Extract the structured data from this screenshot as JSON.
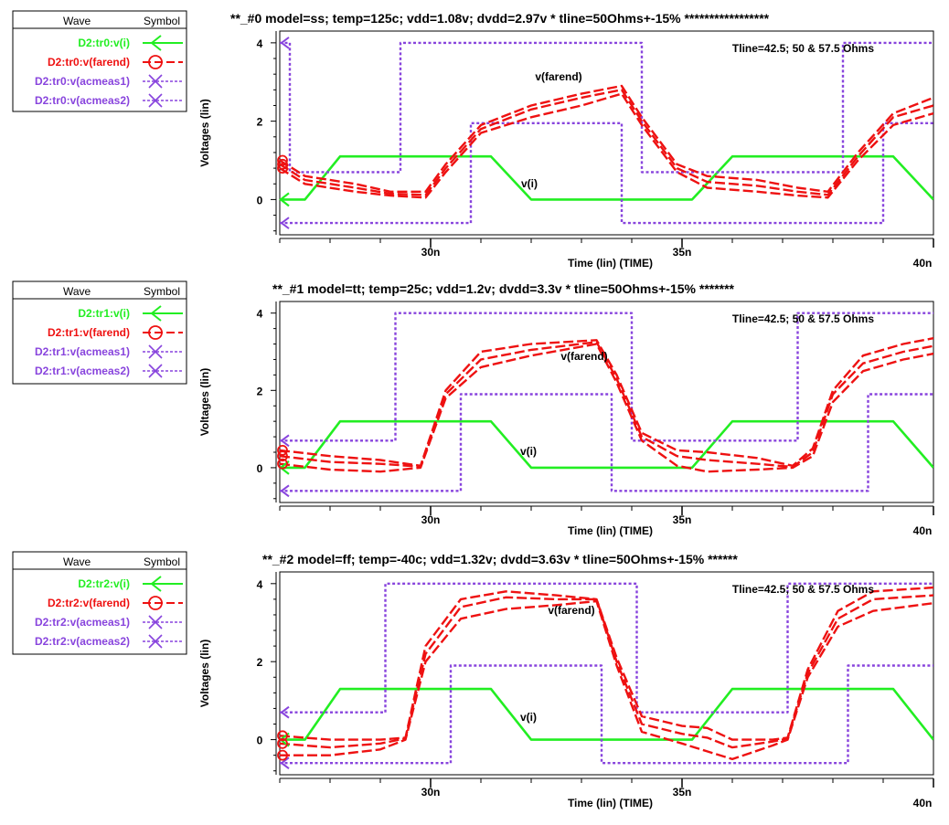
{
  "colors": {
    "vi": "#22ee22",
    "farend": "#ee1111",
    "acmeas": "#8844dd",
    "axis": "#000000"
  },
  "legend_headers": {
    "wave": "Wave",
    "symbol": "Symbol"
  },
  "chart_data": [
    {
      "type": "line",
      "title": "**_#0  model=ss; temp=125c; vdd=1.08v; dvdd=2.97v * tline=50Ohms+-15% *****************",
      "xlabel": "Time (lin) (TIME)",
      "ylabel": "Voltages (lin)",
      "xlim": [
        27,
        40
      ],
      "ylim": [
        -0.9,
        4.3
      ],
      "xticks": [
        {
          "v": 30,
          "label": "30n"
        },
        {
          "v": 35,
          "label": "35n"
        },
        {
          "v": 40,
          "label": "40n"
        }
      ],
      "yticks": [
        {
          "v": 0,
          "label": "0"
        },
        {
          "v": 2,
          "label": "2"
        },
        {
          "v": 4,
          "label": "4"
        }
      ],
      "annotation": "Tline=42.5; 50 & 57.5 Ohms",
      "label_farend": "v(farend)",
      "label_vi": "v(i)",
      "legend": [
        {
          "name": "D2:tr0:v(i)",
          "color": "vi",
          "marker": "arrow",
          "style": "solid"
        },
        {
          "name": "D2:tr0:v(farend)",
          "color": "farend",
          "marker": "circle",
          "style": "dashed"
        },
        {
          "name": "D2:tr0:v(acmeas1)",
          "color": "acmeas",
          "marker": "x",
          "style": "dotted"
        },
        {
          "name": "D2:tr0:v(acmeas2)",
          "color": "acmeas",
          "marker": "x",
          "style": "dotted"
        }
      ],
      "series": [
        {
          "name": "D2:tr0:v(i)",
          "x": [
            27,
            27.5,
            28.2,
            31.2,
            32,
            35.2,
            36,
            39.2,
            40
          ],
          "y": [
            0,
            0,
            1.1,
            1.1,
            0,
            0,
            1.1,
            1.1,
            0
          ]
        },
        {
          "name": "D2:tr0:v(acmeas1)",
          "x": [
            27,
            27.2,
            27.2,
            29.4,
            29.4,
            34.2,
            34.2,
            38.2,
            38.2,
            40
          ],
          "y": [
            4,
            4,
            0.7,
            0.7,
            4,
            4,
            0.7,
            0.7,
            4,
            4
          ]
        },
        {
          "name": "D2:tr0:v(acmeas2)",
          "x": [
            27,
            30.8,
            30.8,
            33.8,
            33.8,
            39.0,
            39.0,
            40
          ],
          "y": [
            -0.6,
            -0.6,
            1.95,
            1.95,
            -0.6,
            -0.6,
            1.95,
            1.95
          ]
        },
        {
          "name": "D2:tr0:v(farend) #1",
          "x": [
            27,
            27.5,
            28.5,
            29.2,
            29.9,
            30.3,
            31,
            32,
            33,
            33.8,
            34.2,
            34.9,
            35.5,
            36.5,
            37.3,
            37.9,
            38.5,
            39.2,
            40
          ],
          "y": [
            1.0,
            0.6,
            0.4,
            0.2,
            0.2,
            0.9,
            1.9,
            2.4,
            2.7,
            2.9,
            2.1,
            0.9,
            0.6,
            0.5,
            0.3,
            0.2,
            1.2,
            2.2,
            2.6
          ]
        },
        {
          "name": "D2:tr0:v(farend) #2",
          "x": [
            27,
            27.5,
            28.5,
            29.2,
            29.9,
            30.3,
            31,
            32,
            33,
            33.8,
            34.2,
            34.9,
            35.5,
            36.5,
            37.3,
            37.9,
            38.5,
            39.2,
            40
          ],
          "y": [
            0.9,
            0.5,
            0.3,
            0.15,
            0.12,
            0.8,
            1.8,
            2.3,
            2.6,
            2.8,
            2.0,
            0.8,
            0.45,
            0.35,
            0.2,
            0.12,
            1.1,
            2.1,
            2.4
          ]
        },
        {
          "name": "D2:tr0:v(farend) #3",
          "x": [
            27,
            27.5,
            28.5,
            29.2,
            29.9,
            30.3,
            31,
            32,
            33,
            33.8,
            34.2,
            34.9,
            35.5,
            36.5,
            37.3,
            37.9,
            38.5,
            39.2,
            40
          ],
          "y": [
            0.8,
            0.4,
            0.2,
            0.1,
            0.05,
            0.7,
            1.7,
            2.1,
            2.4,
            2.7,
            1.9,
            0.7,
            0.3,
            0.2,
            0.1,
            0.05,
            1.0,
            1.9,
            2.2
          ]
        }
      ]
    },
    {
      "type": "line",
      "title": "**_#1   model=tt; temp=25c; vdd=1.2v; dvdd=3.3v * tline=50Ohms+-15% *******",
      "xlabel": "Time (lin) (TIME)",
      "ylabel": "Voltages (lin)",
      "xlim": [
        27,
        40
      ],
      "ylim": [
        -0.9,
        4.3
      ],
      "xticks": [
        {
          "v": 30,
          "label": "30n"
        },
        {
          "v": 35,
          "label": "35n"
        },
        {
          "v": 40,
          "label": "40n"
        }
      ],
      "yticks": [
        {
          "v": 0,
          "label": "0"
        },
        {
          "v": 2,
          "label": "2"
        },
        {
          "v": 4,
          "label": "4"
        }
      ],
      "annotation": "Tline=42.5; 50 & 57.5 Ohms",
      "label_farend": "v(farend)",
      "label_vi": "v(i)",
      "legend": [
        {
          "name": "D2:tr1:v(i)",
          "color": "vi",
          "marker": "arrow",
          "style": "solid"
        },
        {
          "name": "D2:tr1:v(farend)",
          "color": "farend",
          "marker": "circle",
          "style": "dashed"
        },
        {
          "name": "D2:tr1:v(acmeas1)",
          "color": "acmeas",
          "marker": "x",
          "style": "dotted"
        },
        {
          "name": "D2:tr1:v(acmeas2)",
          "color": "acmeas",
          "marker": "x",
          "style": "dotted"
        }
      ],
      "series": [
        {
          "name": "D2:tr1:v(i)",
          "x": [
            27,
            27.5,
            28.2,
            31.2,
            32,
            35.2,
            36,
            39.2,
            40
          ],
          "y": [
            0,
            0,
            1.2,
            1.2,
            0,
            0,
            1.2,
            1.2,
            0
          ]
        },
        {
          "name": "D2:tr1:v(acmeas1)",
          "x": [
            27,
            29.3,
            29.3,
            34.0,
            34.0,
            37.3,
            37.3,
            40
          ],
          "y": [
            0.7,
            0.7,
            4,
            4,
            0.7,
            0.7,
            4,
            4
          ]
        },
        {
          "name": "D2:tr1:v(acmeas2)",
          "x": [
            27,
            30.6,
            30.6,
            33.6,
            33.6,
            38.7,
            38.7,
            40
          ],
          "y": [
            -0.6,
            -0.6,
            1.9,
            1.9,
            -0.6,
            -0.6,
            1.9,
            1.9
          ]
        },
        {
          "name": "D2:tr1:v(farend) #1",
          "x": [
            27,
            28,
            29,
            29.8,
            30.3,
            31,
            32,
            33.3,
            33.7,
            34.2,
            34.9,
            35.5,
            36.5,
            37.2,
            37.6,
            38.0,
            38.6,
            39.4,
            40
          ],
          "y": [
            0.45,
            0.3,
            0.2,
            0.05,
            2.0,
            3.0,
            3.2,
            3.3,
            2.4,
            0.9,
            0.45,
            0.4,
            0.25,
            0.05,
            0.5,
            2.0,
            2.9,
            3.2,
            3.35
          ]
        },
        {
          "name": "D2:tr1:v(farend) #2",
          "x": [
            27,
            28,
            29,
            29.8,
            30.3,
            31,
            32,
            33.3,
            33.7,
            34.2,
            34.9,
            35.5,
            36.5,
            37.2,
            37.6,
            38.0,
            38.6,
            39.4,
            40
          ],
          "y": [
            0.3,
            0.15,
            0.1,
            0.03,
            1.9,
            2.8,
            3.05,
            3.25,
            2.3,
            0.8,
            0.3,
            0.2,
            0.1,
            0.02,
            0.4,
            1.9,
            2.7,
            3.0,
            3.15
          ]
        },
        {
          "name": "D2:tr1:v(farend) #3",
          "x": [
            27,
            28,
            29,
            29.8,
            30.3,
            31,
            32,
            33.3,
            33.7,
            34.2,
            34.9,
            35.5,
            36.5,
            37.2,
            37.6,
            38.0,
            38.6,
            39.4,
            40
          ],
          "y": [
            0.1,
            -0.05,
            -0.1,
            0,
            1.8,
            2.6,
            2.9,
            3.2,
            2.2,
            0.7,
            0.05,
            -0.1,
            -0.05,
            0,
            0.3,
            1.7,
            2.5,
            2.8,
            2.95
          ]
        }
      ]
    },
    {
      "type": "line",
      "title": "**_#2   model=ff; temp=-40c; vdd=1.32v; dvdd=3.63v * tline=50Ohms+-15% ******",
      "xlabel": "Time (lin) (TIME)",
      "ylabel": "Voltages (lin)",
      "xlim": [
        27,
        40
      ],
      "ylim": [
        -0.9,
        4.3
      ],
      "xticks": [
        {
          "v": 30,
          "label": "30n"
        },
        {
          "v": 35,
          "label": "35n"
        },
        {
          "v": 40,
          "label": "40n"
        }
      ],
      "yticks": [
        {
          "v": 0,
          "label": "0"
        },
        {
          "v": 2,
          "label": "2"
        },
        {
          "v": 4,
          "label": "4"
        }
      ],
      "annotation": "Tline=42.5; 50 & 57.5 Ohms",
      "label_farend": "v(farend)",
      "label_vi": "v(i)",
      "legend": [
        {
          "name": "D2:tr2:v(i)",
          "color": "vi",
          "marker": "arrow",
          "style": "solid"
        },
        {
          "name": "D2:tr2:v(farend)",
          "color": "farend",
          "marker": "circle",
          "style": "dashed"
        },
        {
          "name": "D2:tr2:v(acmeas1)",
          "color": "acmeas",
          "marker": "x",
          "style": "dotted"
        },
        {
          "name": "D2:tr2:v(acmeas2)",
          "color": "acmeas",
          "marker": "x",
          "style": "dotted"
        }
      ],
      "series": [
        {
          "name": "D2:tr2:v(i)",
          "x": [
            27,
            27.5,
            28.2,
            31.2,
            32,
            35.2,
            36,
            39.2,
            40
          ],
          "y": [
            0,
            0,
            1.3,
            1.3,
            0,
            0,
            1.3,
            1.3,
            0
          ]
        },
        {
          "name": "D2:tr2:v(acmeas1)",
          "x": [
            27,
            29.1,
            29.1,
            34.1,
            34.1,
            37.1,
            37.1,
            40
          ],
          "y": [
            0.7,
            0.7,
            4,
            4,
            0.7,
            0.7,
            4,
            4
          ]
        },
        {
          "name": "D2:tr2:v(acmeas2)",
          "x": [
            27,
            30.4,
            30.4,
            33.4,
            33.4,
            38.3,
            38.3,
            40
          ],
          "y": [
            -0.6,
            -0.6,
            1.9,
            1.9,
            -0.6,
            -0.6,
            1.9,
            1.9
          ]
        },
        {
          "name": "D2:tr2:v(farend) #1",
          "x": [
            27,
            28,
            29,
            29.5,
            29.9,
            30.6,
            31.5,
            32.5,
            33.3,
            33.7,
            34.2,
            35,
            35.5,
            36,
            36.8,
            37.1,
            37.5,
            38.1,
            38.8,
            40
          ],
          "y": [
            0.1,
            0.0,
            0.0,
            0.05,
            2.4,
            3.6,
            3.8,
            3.7,
            3.6,
            2.1,
            0.6,
            0.35,
            0.3,
            0.0,
            0.0,
            0.05,
            1.8,
            3.3,
            3.8,
            3.9
          ]
        },
        {
          "name": "D2:tr2:v(farend) #2",
          "x": [
            27,
            28,
            29,
            29.5,
            29.9,
            30.6,
            31.5,
            32.5,
            33.3,
            33.7,
            34.2,
            35,
            35.5,
            36,
            36.8,
            37.1,
            37.5,
            38.1,
            38.8,
            40
          ],
          "y": [
            -0.1,
            -0.2,
            -0.1,
            0.03,
            2.2,
            3.4,
            3.65,
            3.6,
            3.6,
            2.0,
            0.4,
            0.15,
            0.05,
            -0.2,
            -0.05,
            0.03,
            1.7,
            3.1,
            3.6,
            3.7
          ]
        },
        {
          "name": "D2:tr2:v(farend) #3",
          "x": [
            27,
            28,
            29,
            29.5,
            29.9,
            30.6,
            31.5,
            32.5,
            33.3,
            33.7,
            34.2,
            35,
            35.5,
            36,
            36.8,
            37.1,
            37.5,
            38.1,
            38.8,
            40
          ],
          "y": [
            -0.4,
            -0.4,
            -0.25,
            0.0,
            2.0,
            3.1,
            3.35,
            3.45,
            3.55,
            1.9,
            0.2,
            -0.1,
            -0.3,
            -0.5,
            -0.15,
            0.0,
            1.6,
            2.9,
            3.3,
            3.5
          ]
        }
      ]
    }
  ]
}
